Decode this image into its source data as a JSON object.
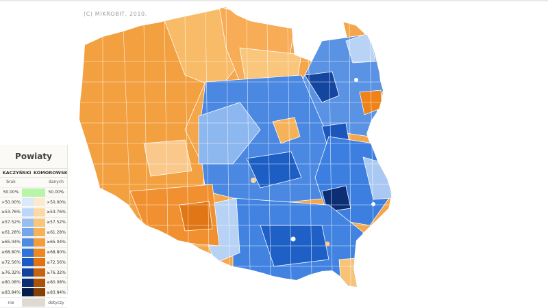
{
  "map": {
    "copyright": "(C) MIKROBIT, 2010.",
    "colors": {
      "kaczynski": [
        "#cfe3fb",
        "#b3cff5",
        "#8cb7ee",
        "#67a0e8",
        "#3f84e1",
        "#1d5fc6",
        "#123f95",
        "#0a2a6a"
      ],
      "komorowski": [
        "#fde7c4",
        "#fbd48f",
        "#f9c06e",
        "#f6a84a",
        "#f2932c",
        "#e77a14",
        "#c3620c",
        "#9b4d08"
      ],
      "none": "#ffffff",
      "equal": "#b8f5a8"
    }
  },
  "legend": {
    "title": "Powiaty",
    "col_left": "KACZYŃSKI",
    "col_right": "KOMOROWSKI",
    "rows": [
      {
        "left": "brak",
        "right": "danych",
        "note": true
      },
      {
        "left": "50.00%",
        "right": "50.00%",
        "equal": true
      },
      {
        "left": ">50.00%",
        "right": ">50.00%",
        "l": "#dbe9fb",
        "r": "#fde9cc"
      },
      {
        "left": "≥53.76%",
        "right": "≥53.76%",
        "l": "#bcd6f7",
        "r": "#fcd9a4"
      },
      {
        "left": "≥57.52%",
        "right": "≥57.52%",
        "l": "#98bdf1",
        "r": "#f9c57b"
      },
      {
        "left": "≥61.28%",
        "right": "≥61.28%",
        "l": "#74a6ea",
        "r": "#f7b159"
      },
      {
        "left": "≥65.04%",
        "right": "≥65.04%",
        "l": "#4e8ce3",
        "r": "#f39c3a"
      },
      {
        "left": "≥68.80%",
        "right": "≥68.80%",
        "l": "#2f73d9",
        "r": "#ee871f"
      },
      {
        "left": "≥72.56%",
        "right": "≥72.56%",
        "l": "#1a5ac4",
        "r": "#e07312"
      },
      {
        "left": "≥76.32%",
        "right": "≥76.32%",
        "l": "#11439e",
        "r": "#c8630c"
      },
      {
        "left": "≥80.08%",
        "right": "≥80.08%",
        "l": "#0b2f75",
        "r": "#a95208"
      },
      {
        "left": "≥83.84%",
        "right": "≥83.84%",
        "l": "#061c4b",
        "r": "#844005"
      },
      {
        "left": "nie",
        "right": "dotyczy",
        "note": true,
        "mid": "#dedad1"
      }
    ]
  }
}
